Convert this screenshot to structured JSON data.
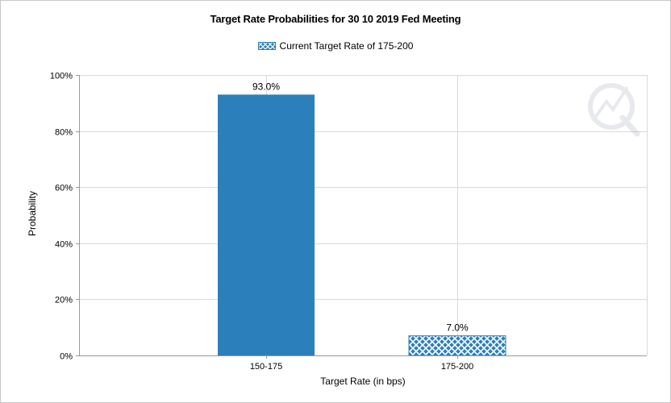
{
  "chart_data": {
    "type": "bar",
    "title": "Target Rate Probabilities for 30 10 2019 Fed Meeting",
    "legend": {
      "label": "Current Target Rate of 175-200",
      "placement": "top-center"
    },
    "categories": [
      "150-175",
      "175-200"
    ],
    "values": [
      93.0,
      7.0
    ],
    "data_labels": [
      "93.0%",
      "7.0%"
    ],
    "current_category": "175-200",
    "xlabel": "Target Rate (in bps)",
    "ylabel": "Probability",
    "ylim": [
      0,
      100
    ],
    "yticks": [
      0,
      20,
      40,
      60,
      80,
      100
    ],
    "ytick_labels": [
      "0%",
      "20%",
      "40%",
      "60%",
      "80%",
      "100%"
    ],
    "grid": true,
    "colors": {
      "bar": "#2b7fbb",
      "hatch_bg": "#ffffff",
      "grid": "#d9d9d9",
      "axis": "#999999"
    },
    "watermark": "cme-q-logo"
  }
}
